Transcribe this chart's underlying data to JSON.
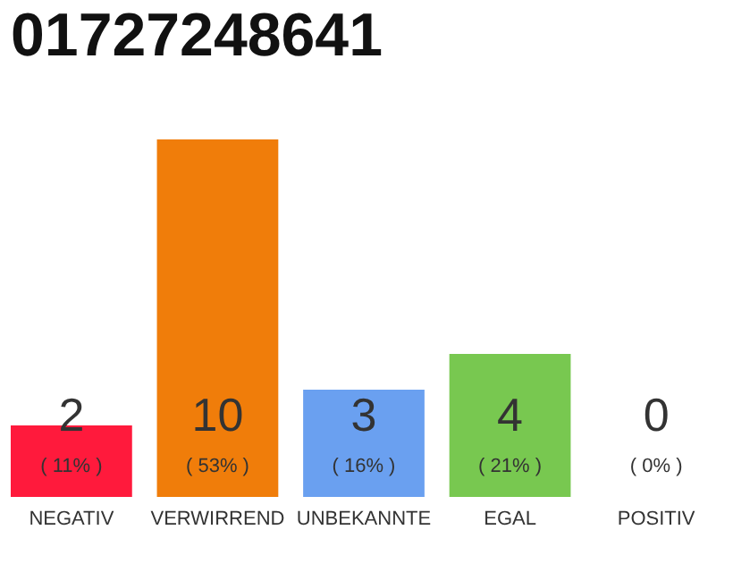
{
  "chart_data": {
    "type": "bar",
    "title": "01727248641",
    "categories": [
      "NEGATIV",
      "VERWIRREND",
      "UNBEKANNTE",
      "EGAL",
      "POSITIV"
    ],
    "values": [
      2,
      10,
      3,
      4,
      0
    ],
    "colors": [
      "#ff1a3c",
      "#f07d0a",
      "#6aa0f0",
      "#78c850",
      "#cccccc"
    ],
    "data_labels": true,
    "annotations": [
      "( 11% )",
      "( 53% )",
      "( 16% )",
      "( 21% )",
      "( 0% )"
    ],
    "tick_labels": "x",
    "grid": false
  }
}
